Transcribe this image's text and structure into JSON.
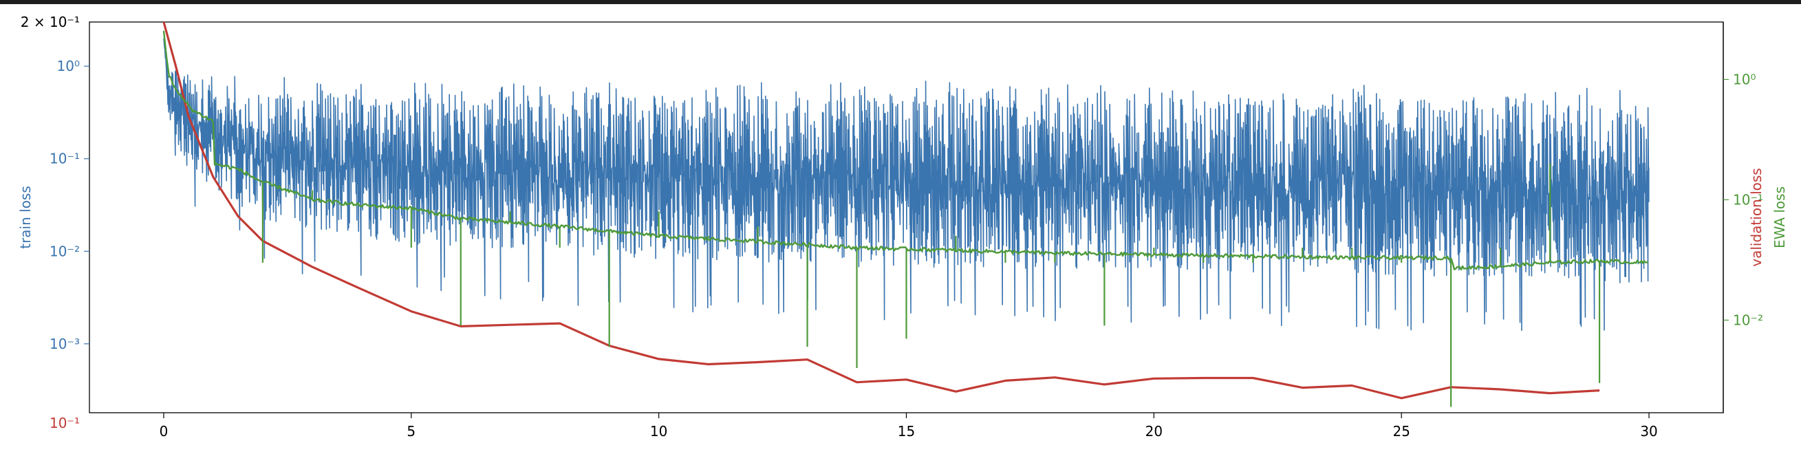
{
  "chart_data": {
    "type": "line",
    "title": "",
    "x_axis": {
      "label": "",
      "range": [
        -1.5,
        31.5
      ],
      "ticks": [
        0,
        5,
        10,
        15,
        20,
        25,
        30
      ],
      "tick_labels": [
        "0",
        "5",
        "10",
        "15",
        "20",
        "25",
        "30"
      ]
    },
    "y_axes": [
      {
        "id": "train",
        "side": "left",
        "label": "train loss",
        "color": "#3b75af",
        "scale": "log",
        "range": [
          0.00018,
          3.0
        ],
        "ticks": [
          1,
          0.1,
          0.01,
          0.001
        ],
        "tick_labels": [
          "10⁰",
          "10⁻¹",
          "10⁻²",
          "10⁻³"
        ]
      },
      {
        "id": "validation",
        "side": "left-overlay",
        "label": "validation loss",
        "color": "#c23b35",
        "scale": "log",
        "range": [
          0.1018,
          0.2
        ],
        "ticks": [
          0.2,
          0.1
        ],
        "tick_labels": [
          "2 × 10⁻¹",
          "10⁻¹"
        ]
      },
      {
        "id": "ewa",
        "side": "right",
        "label": "EWA loss",
        "color": "#4e9a3a",
        "scale": "log",
        "range": [
          0.0017,
          3.0
        ],
        "ticks": [
          1,
          0.1,
          0.01
        ],
        "tick_labels": [
          "10⁰",
          "10⁻¹",
          "10⁻²"
        ]
      }
    ],
    "series": [
      {
        "name": "train loss",
        "axis": "train",
        "color": "#3b75af",
        "style": "noisy-band",
        "x_range": [
          0,
          30
        ],
        "trend_upper_x": [
          0,
          0.1,
          0.5,
          1,
          2,
          5,
          10,
          15,
          20,
          25,
          30
        ],
        "trend_upper_y": [
          2.0,
          1.0,
          0.8,
          0.6,
          0.55,
          0.5,
          0.5,
          0.5,
          0.45,
          0.45,
          0.4
        ],
        "trend_lower_x": [
          0,
          0.1,
          0.5,
          1,
          2,
          5,
          10,
          15,
          20,
          25,
          30
        ],
        "trend_lower_y": [
          2.0,
          0.2,
          0.05,
          0.03,
          0.012,
          0.006,
          0.004,
          0.003,
          0.003,
          0.0025,
          0.002
        ]
      },
      {
        "name": "validation loss",
        "axis": "validation",
        "color": "#c23b35",
        "style": "line",
        "x": [
          0,
          0.25,
          0.5,
          1,
          1.5,
          2,
          3,
          4,
          5,
          6,
          7,
          8,
          9,
          10,
          11,
          12,
          13,
          14,
          15,
          16,
          17,
          18,
          19,
          20,
          21,
          22,
          23,
          24,
          25,
          26,
          27,
          28,
          29
        ],
        "y": [
          0.2,
          0.185,
          0.17,
          0.153,
          0.143,
          0.137,
          0.131,
          0.126,
          0.1213,
          0.1182,
          0.1185,
          0.1188,
          0.1143,
          0.1117,
          0.1107,
          0.1111,
          0.1116,
          0.1073,
          0.1078,
          0.1056,
          0.1076,
          0.1082,
          0.1069,
          0.108,
          0.1081,
          0.1081,
          0.1063,
          0.1067,
          0.1044,
          0.1064,
          0.106,
          0.1053,
          0.1058
        ]
      },
      {
        "name": "EWA loss",
        "axis": "ewa",
        "color": "#4e9a3a",
        "style": "line",
        "x": [
          0,
          0.1,
          0.3,
          0.6,
          1,
          1.01,
          1.5,
          2,
          2.5,
          3,
          4,
          5,
          6,
          8,
          10,
          12,
          14,
          16,
          18,
          20,
          22,
          24,
          25.5,
          26,
          26.05,
          27,
          28,
          29,
          30
        ],
        "y": [
          2.5,
          1.1,
          0.75,
          0.55,
          0.45,
          0.2,
          0.18,
          0.14,
          0.12,
          0.1,
          0.09,
          0.085,
          0.07,
          0.06,
          0.05,
          0.045,
          0.04,
          0.038,
          0.036,
          0.035,
          0.034,
          0.033,
          0.033,
          0.033,
          0.027,
          0.028,
          0.03,
          0.031,
          0.03
        ],
        "spike_x": [
          1,
          2,
          3,
          4,
          5,
          6,
          7,
          8,
          9,
          10,
          11,
          12,
          13,
          14,
          15,
          16,
          17,
          18,
          19,
          20,
          21,
          22,
          23,
          24,
          25,
          26,
          27,
          28,
          29
        ],
        "spike_to": [
          0.45,
          0.03,
          0.12,
          0.09,
          0.04,
          0.009,
          0.08,
          0.04,
          0.006,
          0.08,
          0.05,
          0.06,
          0.006,
          0.004,
          0.007,
          0.05,
          0.03,
          0.03,
          0.009,
          0.04,
          0.03,
          0.03,
          0.04,
          0.04,
          0.03,
          0.0019,
          0.04,
          0.2,
          0.003
        ]
      }
    ],
    "legend": "none",
    "grid": false
  }
}
